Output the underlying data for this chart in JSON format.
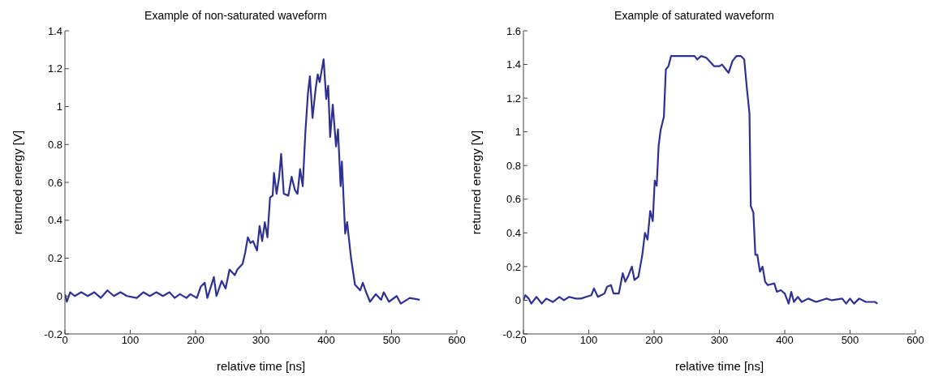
{
  "chart_data": [
    {
      "type": "line",
      "title": "Example of non-saturated waveform",
      "xlabel": "relative time [ns]",
      "ylabel": "returned energy [V]",
      "xlim": [
        0,
        600
      ],
      "ylim": [
        -0.2,
        1.4
      ],
      "xticks": [
        0,
        100,
        200,
        300,
        400,
        500,
        600
      ],
      "yticks": [
        -0.2,
        0,
        0.2,
        0.4,
        0.6,
        0.8,
        1,
        1.2,
        1.4
      ],
      "series": [
        {
          "color": "#2e3192",
          "x": [
            0,
            3,
            8,
            15,
            25,
            35,
            45,
            55,
            65,
            75,
            85,
            95,
            110,
            120,
            130,
            140,
            150,
            160,
            168,
            176,
            186,
            192,
            202,
            208,
            214,
            218,
            228,
            232,
            240,
            246,
            252,
            260,
            264,
            272,
            276,
            280,
            284,
            288,
            294,
            298,
            302,
            306,
            310,
            314,
            318,
            320,
            324,
            328,
            331,
            335,
            342,
            347,
            352,
            356,
            360,
            364,
            368,
            372,
            375,
            379,
            384,
            387,
            390,
            396,
            400,
            403,
            406,
            410,
            415,
            418,
            422,
            424,
            429,
            432,
            438,
            444,
            452,
            456,
            460,
            467,
            476,
            484,
            488,
            496,
            508,
            514,
            528,
            543
          ],
          "values": [
            0.01,
            -0.03,
            0.02,
            0,
            0.02,
            0,
            0.02,
            -0.01,
            0.03,
            0,
            0.02,
            0,
            -0.01,
            0.02,
            0,
            0.02,
            0,
            0.02,
            -0.01,
            0.01,
            -0.01,
            0.01,
            -0.01,
            0.05,
            0.07,
            -0.01,
            0.1,
            0,
            0.08,
            0.04,
            0.14,
            0.11,
            0.14,
            0.17,
            0.23,
            0.31,
            0.28,
            0.29,
            0.24,
            0.37,
            0.29,
            0.39,
            0.31,
            0.52,
            0.53,
            0.65,
            0.54,
            0.63,
            0.75,
            0.54,
            0.53,
            0.63,
            0.56,
            0.54,
            0.67,
            0.58,
            0.86,
            1.07,
            1.16,
            0.94,
            1.1,
            1.17,
            1.13,
            1.25,
            1.04,
            1.11,
            0.84,
            1.01,
            0.79,
            0.88,
            0.58,
            0.71,
            0.33,
            0.39,
            0.2,
            0.06,
            0.03,
            0.07,
            0.03,
            -0.03,
            0.01,
            -0.02,
            0.02,
            -0.03,
            0,
            -0.04,
            -0.01,
            -0.02
          ]
        }
      ]
    },
    {
      "type": "line",
      "title": "Example of saturated waveform",
      "xlabel": "relative time [ns]",
      "ylabel": "returned energy [V]",
      "xlim": [
        0,
        600
      ],
      "ylim": [
        -0.2,
        1.6
      ],
      "xticks": [
        0,
        100,
        200,
        300,
        400,
        500,
        600
      ],
      "yticks": [
        -0.2,
        0,
        0.2,
        0.4,
        0.6,
        0.8,
        1,
        1.2,
        1.4,
        1.6
      ],
      "series": [
        {
          "color": "#2e3192",
          "x": [
            0,
            3,
            8,
            12,
            20,
            28,
            35,
            45,
            55,
            62,
            70,
            80,
            88,
            96,
            104,
            108,
            114,
            124,
            128,
            134,
            138,
            146,
            148,
            152,
            156,
            160,
            166,
            170,
            176,
            182,
            186,
            190,
            194,
            198,
            201,
            204,
            207,
            210,
            215,
            218,
            222,
            226,
            262,
            266,
            272,
            280,
            292,
            300,
            304,
            310,
            314,
            320,
            326,
            333,
            338,
            342,
            346,
            348,
            352,
            355,
            358,
            362,
            366,
            370,
            374,
            384,
            388,
            394,
            400,
            406,
            410,
            414,
            420,
            426,
            436,
            448,
            464,
            472,
            488,
            494,
            500,
            506,
            514,
            524,
            538,
            542
          ],
          "values": [
            0,
            0.03,
            0.01,
            -0.02,
            0.02,
            -0.02,
            0.01,
            -0.01,
            0.02,
            0,
            0.02,
            0.01,
            0.01,
            0.02,
            0.03,
            0.07,
            0.02,
            0.04,
            0.08,
            0.09,
            0.04,
            0.04,
            0.08,
            0.16,
            0.11,
            0.14,
            0.2,
            0.12,
            0.14,
            0.27,
            0.4,
            0.36,
            0.53,
            0.47,
            0.71,
            0.68,
            0.92,
            1.01,
            1.09,
            1.37,
            1.39,
            1.45,
            1.45,
            1.43,
            1.45,
            1.44,
            1.39,
            1.39,
            1.4,
            1.37,
            1.35,
            1.42,
            1.45,
            1.45,
            1.43,
            1.26,
            1.11,
            0.56,
            0.52,
            0.27,
            0.27,
            0.17,
            0.2,
            0.11,
            0.09,
            0.1,
            0.05,
            0.06,
            0.04,
            -0.02,
            0.05,
            -0.01,
            0.02,
            -0.01,
            0.01,
            -0.01,
            0.01,
            0,
            0.01,
            -0.02,
            0.01,
            -0.02,
            0.01,
            -0.01,
            -0.01,
            -0.02
          ]
        }
      ]
    }
  ]
}
